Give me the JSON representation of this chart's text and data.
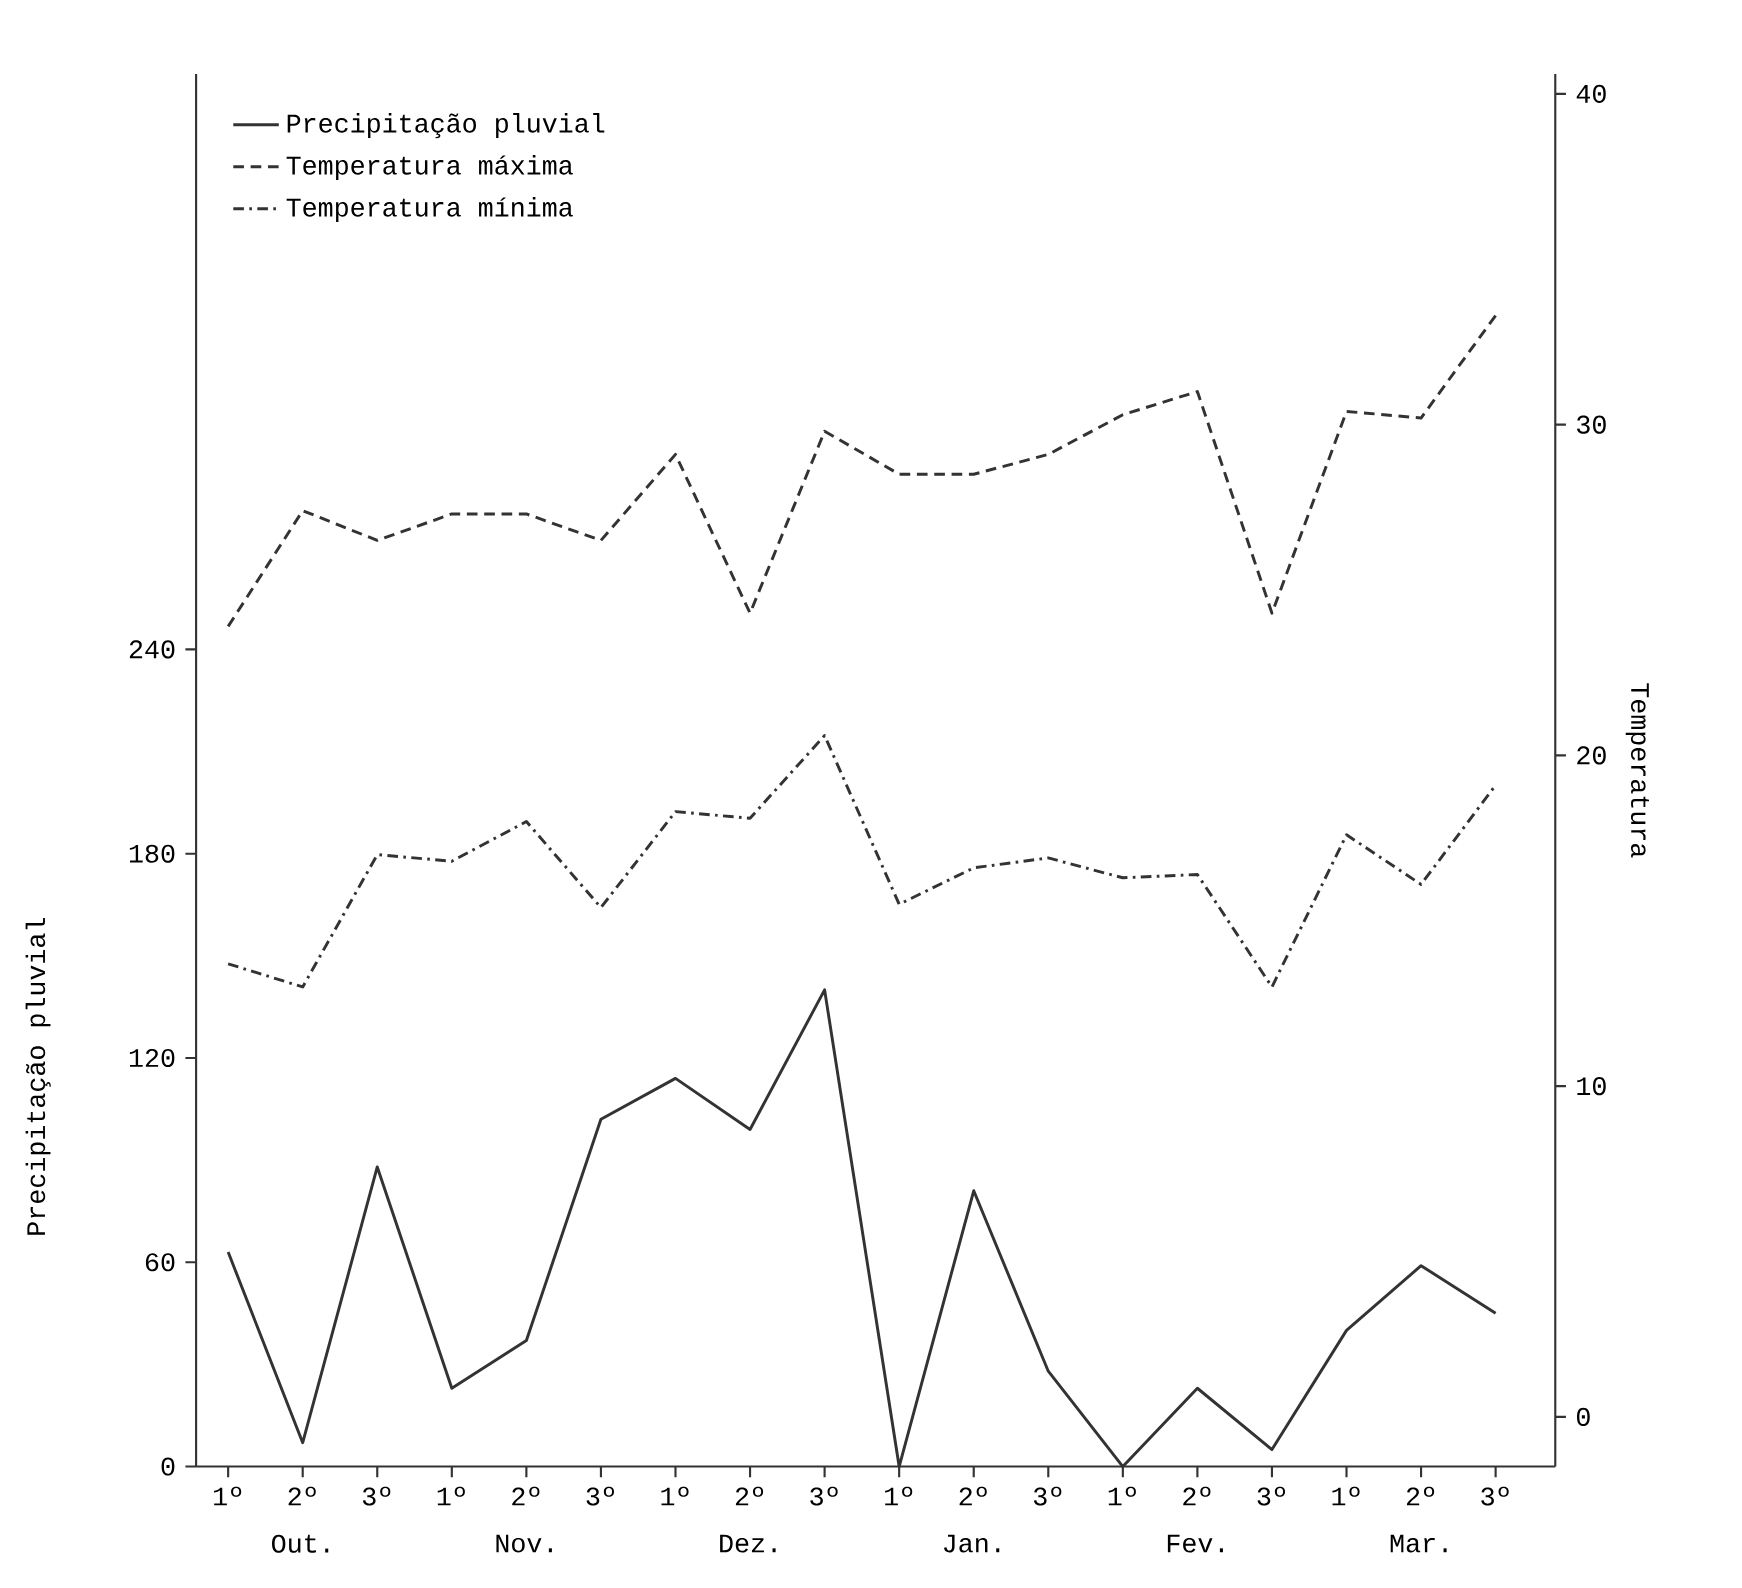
{
  "chart_data": {
    "type": "line",
    "categories": [
      "1º",
      "2º",
      "3º",
      "1º",
      "2º",
      "3º",
      "1º",
      "2º",
      "3º",
      "1º",
      "2º",
      "3º",
      "1º",
      "2º",
      "3º",
      "1º",
      "2º",
      "3º"
    ],
    "annotations": [
      "Out.",
      "Nov.",
      "Dez.",
      "Jan.",
      "Fev.",
      "Mar."
    ],
    "ylabel": "Precipitação pluvial",
    "y2label": "Temperatura",
    "ylim": [
      0,
      409
    ],
    "yticks": [
      0,
      60,
      120,
      180,
      240
    ],
    "y2lim": [
      -1.5,
      40.6
    ],
    "y2ticks": [
      0,
      10,
      20,
      30,
      40
    ],
    "legend": "top left",
    "grid": false,
    "marker": "none",
    "series": [
      {
        "name": "Precipitação pluvial",
        "color": "#333333",
        "line_style": "solid",
        "values": [
          63,
          7,
          88,
          23,
          37,
          102,
          114,
          99,
          140,
          0,
          81,
          28,
          0,
          23,
          5,
          40,
          59,
          45
        ]
      },
      {
        "name": "Temperatura máxima",
        "color": "#333333",
        "line_style": "dashed",
        "axis": "y2",
        "values": [
          23.9,
          27.4,
          26.5,
          27.3,
          27.3,
          26.5,
          29.1,
          24.3,
          29.8,
          28.5,
          28.5,
          29.1,
          30.3,
          31.0,
          24.3,
          30.4,
          30.2,
          33.3
        ]
      },
      {
        "name": "Temperatura mínima",
        "color": "#333333",
        "line_style": "dashdot",
        "axis": "y2",
        "values": [
          13.7,
          13.0,
          17.0,
          16.8,
          18.0,
          15.4,
          18.3,
          18.1,
          20.6,
          15.5,
          16.6,
          16.9,
          16.3,
          16.4,
          13.0,
          17.6,
          16.1,
          19.1
        ]
      }
    ]
  }
}
